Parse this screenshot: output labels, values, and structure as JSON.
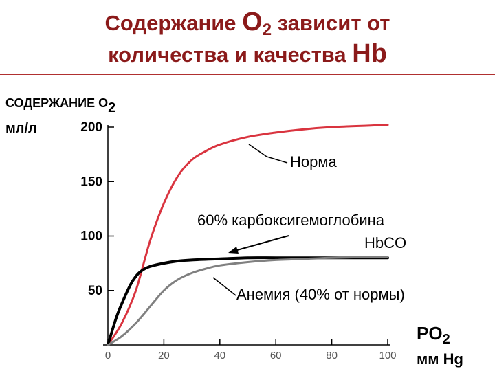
{
  "slide": {
    "title_line1_pre": "Содержание ",
    "title_line1_o": "O",
    "title_line1_sub": "2",
    "title_line1_post": " зависит от",
    "title_line2_pre": "количества и качества ",
    "title_line2_hb": "Hb"
  },
  "colors": {
    "title": "#8b1a1a",
    "norma": "#d9343f",
    "carboxy": "#000000",
    "anemia": "#808080"
  },
  "chart_data": {
    "type": "line",
    "ylabel_line1": "СОДЕРЖАНИЕ O",
    "ylabel_sub": "2",
    "ylabel_unit": "мл/л",
    "xlabel_line1": "PO",
    "xlabel_sub": "2",
    "xlabel_unit": "мм Hg",
    "xlim": [
      0,
      100
    ],
    "ylim": [
      0,
      200
    ],
    "xticks": [
      "0",
      "20",
      "40",
      "60",
      "80",
      "100"
    ],
    "yticks": [
      "200",
      "150",
      "100",
      "50"
    ],
    "series": [
      {
        "name": "Норма",
        "x": [
          0,
          5,
          10,
          15,
          20,
          25,
          30,
          35,
          40,
          50,
          60,
          70,
          80,
          100
        ],
        "y": [
          0,
          20,
          50,
          95,
          130,
          155,
          170,
          178,
          184,
          191,
          195,
          198,
          200,
          202
        ]
      },
      {
        "name": "60% карбоксигемоглобина HbCO",
        "x": [
          0,
          3,
          5,
          8,
          10,
          12,
          15,
          20,
          25,
          30,
          40,
          50,
          60,
          70,
          80,
          100
        ],
        "y": [
          0,
          25,
          38,
          55,
          63,
          68,
          72,
          75,
          77,
          78,
          79,
          80,
          80,
          80,
          80,
          80
        ]
      },
      {
        "name": "Анемия (40% от нормы)",
        "x": [
          0,
          5,
          10,
          15,
          20,
          25,
          30,
          35,
          40,
          50,
          60,
          70,
          80,
          100
        ],
        "y": [
          0,
          8,
          20,
          35,
          50,
          60,
          66,
          70,
          73,
          76,
          78,
          79,
          80,
          81
        ]
      }
    ],
    "annotations": [
      {
        "text": "Норма"
      },
      {
        "text_line1": "60% карбоксигемоглобина",
        "text_line2": "HbCO"
      },
      {
        "text": "Анемия (40% от нормы)"
      }
    ]
  }
}
